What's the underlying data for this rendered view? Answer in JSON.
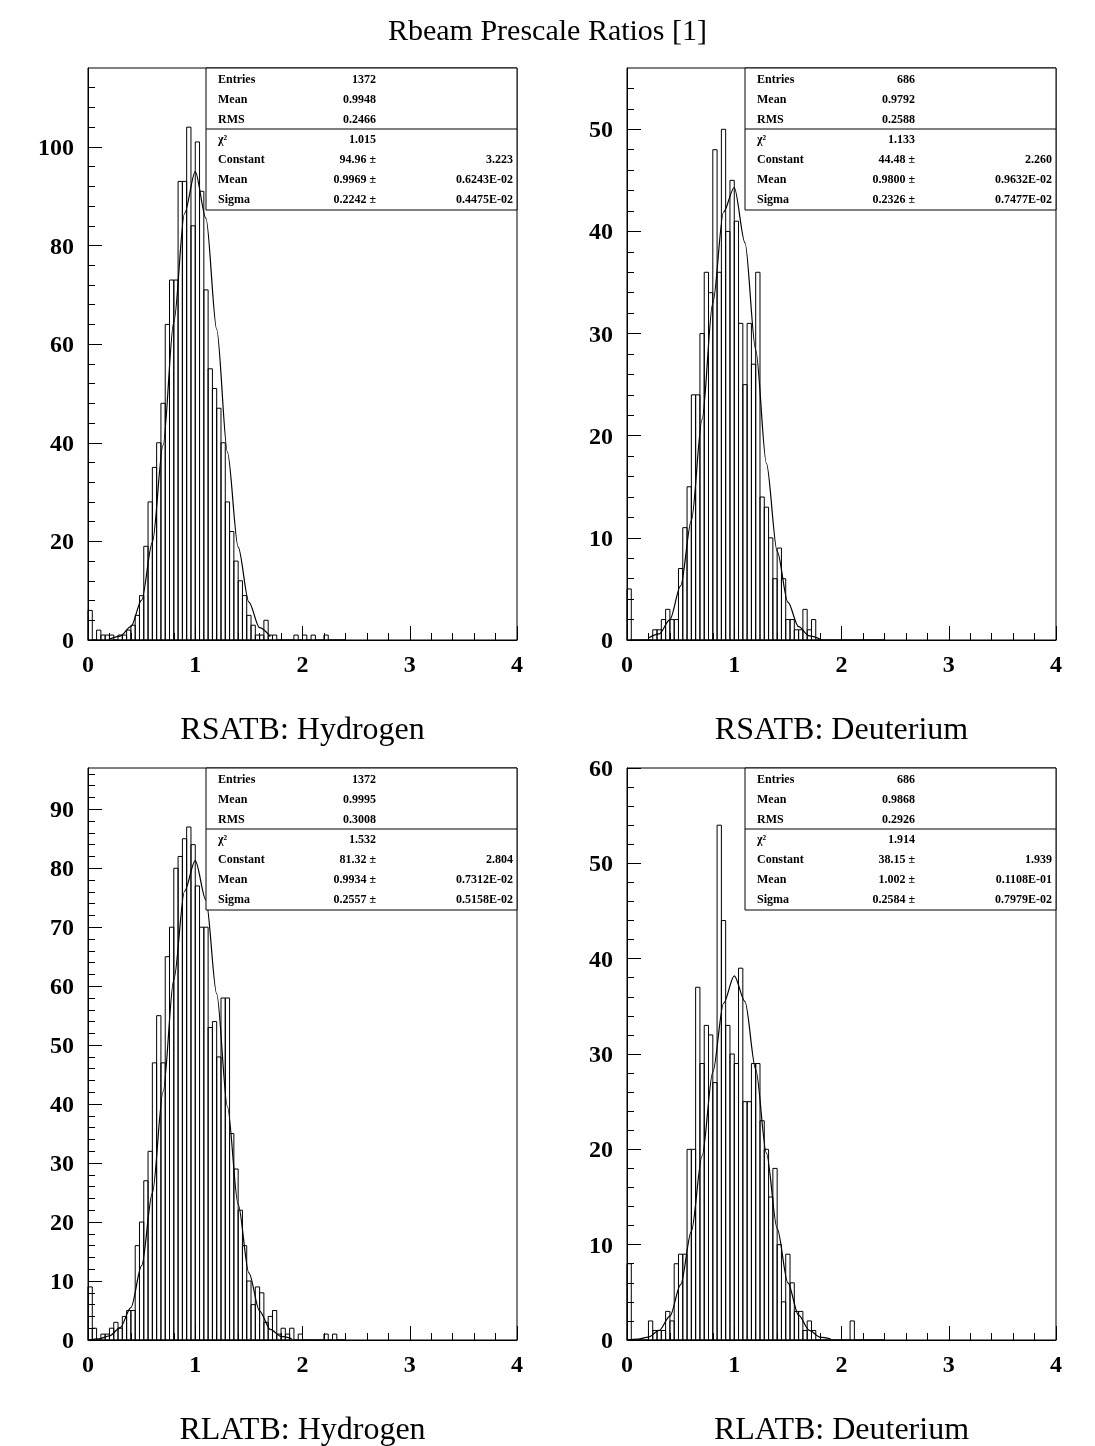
{
  "chart_data": [
    {
      "type": "histogram",
      "title": "Rbeam Prescale Ratios [1]",
      "xlabel": "RSATB: Hydrogen",
      "color": "#000000",
      "xlim": [
        0,
        4
      ],
      "xticks": [
        0,
        1,
        2,
        3,
        4
      ],
      "ylim": [
        0,
        116
      ],
      "yticks": [
        0,
        20,
        40,
        60,
        80,
        100
      ],
      "bins": [
        0,
        0.04,
        0.08,
        0.12,
        0.16,
        0.2,
        0.24,
        0.28,
        0.32,
        0.36,
        0.4,
        0.44,
        0.48,
        0.52,
        0.56,
        0.6,
        0.64,
        0.68,
        0.72,
        0.76,
        0.8,
        0.84,
        0.88,
        0.92,
        0.96,
        1,
        1.04,
        1.08,
        1.12,
        1.16,
        1.2,
        1.24,
        1.28,
        1.32,
        1.36,
        1.4,
        1.44,
        1.48,
        1.52,
        1.56,
        1.6,
        1.64,
        1.68,
        1.72,
        1.76,
        1.8,
        1.84,
        1.88,
        1.92,
        1.96,
        2,
        2.04,
        2.08,
        2.12,
        2.16,
        2.2,
        2.24,
        2.28,
        2.32,
        2.36,
        2.4
      ],
      "values": [
        6,
        0,
        2,
        1,
        1,
        1,
        0,
        1,
        1,
        2,
        3,
        5,
        9,
        19,
        28,
        35,
        40,
        48,
        64,
        73,
        73,
        93,
        93,
        104,
        84,
        101,
        91,
        71,
        55,
        51,
        47,
        40,
        28,
        22,
        16,
        12,
        9,
        5,
        3,
        1,
        1,
        4,
        1,
        1,
        0,
        0,
        0,
        0,
        1,
        0,
        1,
        0,
        1,
        0,
        0,
        1,
        0,
        0,
        0,
        0
      ],
      "series": [
        {
          "type": "line",
          "color": "#000000",
          "x": [
            0.2,
            0.3,
            0.4,
            0.5,
            0.6,
            0.7,
            0.8,
            0.9,
            1,
            1.1,
            1.2,
            1.3,
            1.4,
            1.5,
            1.6,
            1.7
          ],
          "values": [
            0.2,
            0.8,
            2.7,
            8.1,
            19.8,
            39.5,
            64.5,
            86.5,
            95,
            85.5,
            63,
            38.1,
            18.9,
            7.7,
            2.5,
            0.7
          ]
        }
      ],
      "annotations": [
        "Entries 1372",
        "Mean 0.9948",
        "RMS 0.2466",
        "χ² 1.015",
        "Constant 94.96 ± 3.223",
        "Mean 0.9969 ± 0.6243E-02",
        "Sigma 0.2242 ± 0.4475E-02"
      ]
    },
    {
      "type": "histogram",
      "xlabel": "RSATB: Deuterium",
      "color": "#000000",
      "xlim": [
        0,
        4
      ],
      "xticks": [
        0,
        1,
        2,
        3,
        4
      ],
      "ylim": [
        0,
        56
      ],
      "yticks": [
        0,
        10,
        20,
        30,
        40,
        50
      ],
      "bins": [
        0,
        0.04,
        0.08,
        0.12,
        0.16,
        0.2,
        0.24,
        0.28,
        0.32,
        0.36,
        0.4,
        0.44,
        0.48,
        0.52,
        0.56,
        0.6,
        0.64,
        0.68,
        0.72,
        0.76,
        0.8,
        0.84,
        0.88,
        0.92,
        0.96,
        1,
        1.04,
        1.08,
        1.12,
        1.16,
        1.2,
        1.24,
        1.28,
        1.32,
        1.36,
        1.4,
        1.44,
        1.48,
        1.52,
        1.56,
        1.6,
        1.64,
        1.68,
        1.72,
        1.76,
        1.8,
        1.84,
        1.88,
        1.92,
        1.96,
        2,
        2.04,
        2.08,
        2.12,
        2.16,
        2.2,
        2.24,
        2.28,
        2.32,
        2.36,
        2.4
      ],
      "values": [
        5,
        0,
        0,
        0,
        0,
        0,
        1,
        1,
        2,
        3,
        2,
        2,
        7,
        11,
        15,
        24,
        24,
        30,
        36,
        34,
        48,
        36,
        50,
        40,
        45,
        41,
        31,
        25,
        31,
        27,
        36,
        14,
        13,
        10,
        6,
        9,
        6,
        2,
        2,
        1,
        1,
        3,
        1,
        2,
        0,
        0,
        0,
        0,
        0,
        0,
        0,
        0,
        0,
        0,
        0,
        0,
        0,
        0,
        0,
        0
      ],
      "series": [
        {
          "type": "line",
          "color": "#000000",
          "x": [
            0.2,
            0.3,
            0.4,
            0.5,
            0.6,
            0.7,
            0.8,
            0.9,
            1,
            1.1,
            1.2,
            1.3,
            1.4,
            1.5,
            1.6,
            1.7,
            1.8
          ],
          "values": [
            0.2,
            0.6,
            2,
            5.3,
            11.7,
            21.6,
            33,
            41.9,
            44.3,
            38.9,
            28.4,
            17.3,
            8.7,
            3.7,
            1.3,
            0.4,
            0.1
          ]
        }
      ],
      "annotations": [
        "Entries 686",
        "Mean 0.9792",
        "RMS 0.2588",
        "χ² 1.133",
        "Constant 44.48 ± 2.260",
        "Mean 0.9800 ± 0.9632E-02",
        "Sigma 0.2326 ± 0.7477E-02"
      ]
    },
    {
      "type": "histogram",
      "xlabel": "RLATB: Hydrogen",
      "color": "#000000",
      "xlim": [
        0,
        4
      ],
      "xticks": [
        0,
        1,
        2,
        3,
        4
      ],
      "ylim": [
        0,
        97
      ],
      "yticks": [
        0,
        10,
        20,
        30,
        40,
        50,
        60,
        70,
        80,
        90
      ],
      "bins": [
        0,
        0.04,
        0.08,
        0.12,
        0.16,
        0.2,
        0.24,
        0.28,
        0.32,
        0.36,
        0.4,
        0.44,
        0.48,
        0.52,
        0.56,
        0.6,
        0.64,
        0.68,
        0.72,
        0.76,
        0.8,
        0.84,
        0.88,
        0.92,
        0.96,
        1,
        1.04,
        1.08,
        1.12,
        1.16,
        1.2,
        1.24,
        1.28,
        1.32,
        1.36,
        1.4,
        1.44,
        1.48,
        1.52,
        1.56,
        1.6,
        1.64,
        1.68,
        1.72,
        1.76,
        1.8,
        1.84,
        1.88,
        1.92,
        1.96,
        2,
        2.04,
        2.08,
        2.12,
        2.16,
        2.2,
        2.24,
        2.28,
        2.32,
        2.36,
        2.4
      ],
      "values": [
        9,
        2,
        0,
        1,
        1,
        2,
        3,
        2,
        4,
        5,
        5,
        16,
        20,
        27,
        32,
        47,
        55,
        47,
        65,
        70,
        80,
        82,
        85,
        87,
        84,
        77,
        70,
        70,
        53,
        54,
        48,
        58,
        58,
        35,
        29,
        22,
        16,
        10,
        6,
        9,
        8,
        3,
        4,
        5,
        1,
        2,
        1,
        2,
        0,
        1,
        0,
        0,
        0,
        0,
        0,
        1,
        0,
        1,
        0,
        0
      ],
      "series": [
        {
          "type": "line",
          "color": "#000000",
          "x": [
            0,
            0.1,
            0.2,
            0.3,
            0.4,
            0.5,
            0.6,
            0.7,
            0.8,
            0.9,
            1,
            1.1,
            1.2,
            1.3,
            1.4,
            1.5,
            1.6,
            1.7,
            1.8,
            1.9
          ],
          "values": [
            0,
            0.2,
            0.7,
            2.1,
            5.5,
            12.6,
            24.9,
            42.1,
            61.1,
            76.1,
            81.3,
            74.6,
            58.7,
            39.6,
            23,
            11.4,
            4.9,
            1.8,
            0.6,
            0.2
          ]
        }
      ],
      "annotations": [
        "Entries 1372",
        "Mean 0.9995",
        "RMS 0.3008",
        "χ² 1.532",
        "Constant 81.32 ± 2.804",
        "Mean 0.9934 ± 0.7312E-02",
        "Sigma 0.2557 ± 0.5158E-02"
      ]
    },
    {
      "type": "histogram",
      "xlabel": "RLATB: Deuterium",
      "color": "#000000",
      "xlim": [
        0,
        4
      ],
      "xticks": [
        0,
        1,
        2,
        3,
        4
      ],
      "ylim": [
        0,
        60
      ],
      "yticks": [
        0,
        10,
        20,
        30,
        40,
        50,
        60
      ],
      "bins": [
        0,
        0.04,
        0.08,
        0.12,
        0.16,
        0.2,
        0.24,
        0.28,
        0.32,
        0.36,
        0.4,
        0.44,
        0.48,
        0.52,
        0.56,
        0.6,
        0.64,
        0.68,
        0.72,
        0.76,
        0.8,
        0.84,
        0.88,
        0.92,
        0.96,
        1,
        1.04,
        1.08,
        1.12,
        1.16,
        1.2,
        1.24,
        1.28,
        1.32,
        1.36,
        1.4,
        1.44,
        1.48,
        1.52,
        1.56,
        1.6,
        1.64,
        1.68,
        1.72,
        1.76,
        1.8,
        1.84,
        1.88,
        1.92,
        1.96,
        2,
        2.04,
        2.08,
        2.12,
        2.16,
        2.2,
        2.24,
        2.28,
        2.32,
        2.36,
        2.4
      ],
      "values": [
        8,
        0,
        0,
        0,
        0,
        2,
        1,
        1,
        1,
        3,
        2,
        8,
        9,
        9,
        20,
        20,
        37,
        29,
        33,
        32,
        27,
        54,
        44,
        33,
        30,
        29,
        39,
        25,
        25,
        29,
        29,
        23,
        20,
        15,
        18,
        10,
        4,
        9,
        6,
        3,
        3,
        1,
        2,
        1,
        0,
        0,
        0,
        0,
        0,
        0,
        0,
        0,
        2,
        0,
        0,
        0,
        0,
        0,
        0,
        0
      ],
      "series": [
        {
          "type": "line",
          "color": "#000000",
          "x": [
            0,
            0.1,
            0.2,
            0.3,
            0.4,
            0.5,
            0.6,
            0.7,
            0.8,
            0.9,
            1,
            1.1,
            1.2,
            1.3,
            1.4,
            1.5,
            1.6,
            1.7,
            1.8,
            1.9
          ],
          "values": [
            0,
            0.1,
            0.3,
            1,
            2.5,
            5.8,
            11.4,
            19.3,
            28.1,
            35.3,
            38.2,
            35.5,
            28.4,
            19.6,
            11.7,
            6,
            2.6,
            1,
            0.3,
            0.1
          ]
        }
      ],
      "annotations": [
        "Entries 686",
        "Mean 0.9868",
        "RMS 0.2926",
        "χ² 1.914",
        "Constant 38.15 ± 1.939",
        "Mean 1.002 ± 0.1108E-01",
        "Sigma 0.2584 ± 0.7979E-02"
      ]
    }
  ]
}
